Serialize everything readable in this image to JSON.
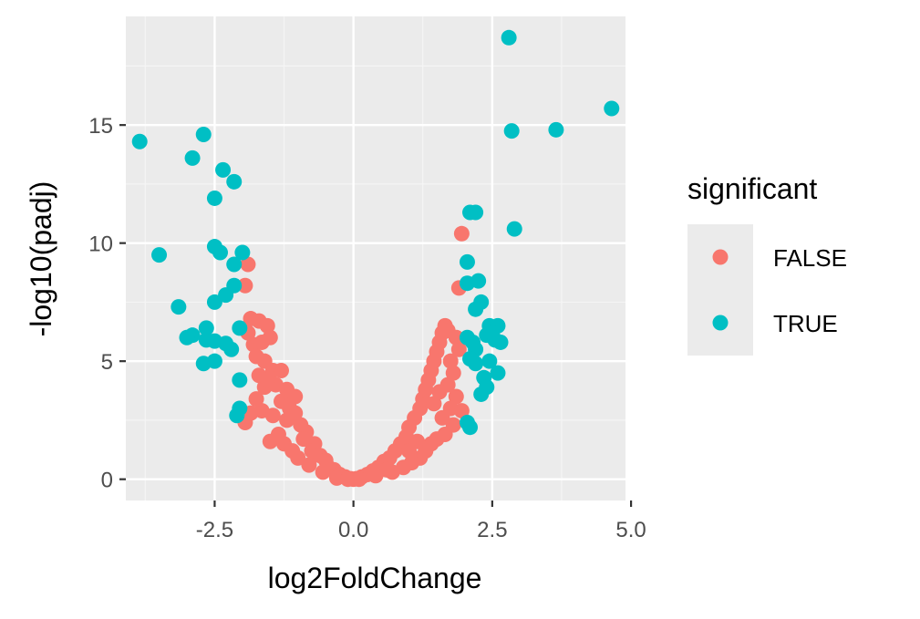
{
  "chart_data": {
    "type": "scatter",
    "xlabel": "log2FoldChange",
    "ylabel": "-log10(padj)",
    "xlim": [
      -4.1,
      4.9
    ],
    "ylim": [
      -0.9,
      19.6
    ],
    "xticks": [
      -2.5,
      0.0,
      2.5,
      5.0
    ],
    "xtick_labels": [
      "-2.5",
      "0.0",
      "2.5",
      "5.0"
    ],
    "yticks": [
      0,
      5,
      10,
      15
    ],
    "ytick_labels": [
      "0",
      "5",
      "10",
      "15"
    ],
    "grid": true,
    "legend": {
      "title": "significant",
      "position": "right"
    },
    "colors": {
      "panel": "#ebebeb",
      "grid_major": "#ffffff",
      "grid_minor": "#f5f5f5",
      "axis_tick": "#333333",
      "FALSE": "#f8766d",
      "TRUE": "#00bfc4"
    },
    "series": [
      {
        "name": "FALSE",
        "points": [
          [
            -1.9,
            9.1
          ],
          [
            -1.95,
            8.2
          ],
          [
            1.95,
            10.4
          ],
          [
            1.9,
            8.1
          ],
          [
            -1.85,
            6.8
          ],
          [
            -1.7,
            6.7
          ],
          [
            -1.55,
            6.5
          ],
          [
            -1.5,
            6.0
          ],
          [
            -1.8,
            5.7
          ],
          [
            -1.75,
            5.2
          ],
          [
            -1.6,
            5.0
          ],
          [
            -1.45,
            4.6
          ],
          [
            -1.7,
            4.4
          ],
          [
            -1.6,
            3.9
          ],
          [
            -1.4,
            4.0
          ],
          [
            -1.2,
            3.8
          ],
          [
            -1.3,
            3.3
          ],
          [
            -1.15,
            3.0
          ],
          [
            -1.05,
            2.8
          ],
          [
            -1.2,
            2.5
          ],
          [
            -0.95,
            2.3
          ],
          [
            -0.85,
            2.0
          ],
          [
            -0.9,
            1.7
          ],
          [
            -0.7,
            1.5
          ],
          [
            -0.75,
            1.2
          ],
          [
            -0.6,
            1.0
          ],
          [
            -0.5,
            0.8
          ],
          [
            -0.45,
            0.5
          ],
          [
            -0.35,
            0.4
          ],
          [
            -0.25,
            0.2
          ],
          [
            -0.15,
            0.1
          ],
          [
            -0.05,
            0.02
          ],
          [
            -1.95,
            2.4
          ],
          [
            -1.85,
            2.8
          ],
          [
            -1.65,
            2.9
          ],
          [
            -1.45,
            2.7
          ],
          [
            -1.5,
            1.6
          ],
          [
            -1.35,
            1.9
          ],
          [
            -1.25,
            1.5
          ],
          [
            -1.1,
            1.2
          ],
          [
            -1.0,
            0.9
          ],
          [
            -0.8,
            0.6
          ],
          [
            -1.05,
            3.5
          ],
          [
            -1.3,
            4.6
          ],
          [
            -1.75,
            3.4
          ],
          [
            -1.55,
            4.2
          ],
          [
            -1.9,
            6.2
          ],
          [
            -1.65,
            5.8
          ],
          [
            -0.55,
            0.3
          ],
          [
            -0.3,
            0.05
          ],
          [
            0.05,
            0.02
          ],
          [
            0.15,
            0.1
          ],
          [
            0.25,
            0.2
          ],
          [
            0.35,
            0.35
          ],
          [
            0.45,
            0.5
          ],
          [
            0.55,
            0.75
          ],
          [
            0.65,
            0.9
          ],
          [
            0.75,
            1.2
          ],
          [
            0.85,
            1.5
          ],
          [
            0.95,
            1.8
          ],
          [
            1.0,
            2.2
          ],
          [
            1.1,
            2.6
          ],
          [
            1.2,
            3.0
          ],
          [
            1.25,
            3.4
          ],
          [
            1.3,
            3.8
          ],
          [
            1.35,
            4.2
          ],
          [
            1.4,
            4.6
          ],
          [
            1.45,
            5.0
          ],
          [
            1.5,
            5.4
          ],
          [
            1.55,
            5.8
          ],
          [
            1.6,
            6.2
          ],
          [
            1.65,
            6.5
          ],
          [
            1.7,
            6.3
          ],
          [
            1.85,
            6.0
          ],
          [
            1.9,
            5.5
          ],
          [
            1.75,
            5.0
          ],
          [
            1.8,
            4.5
          ],
          [
            1.7,
            4.0
          ],
          [
            1.85,
            3.5
          ],
          [
            1.75,
            3.0
          ],
          [
            1.6,
            2.6
          ],
          [
            1.65,
            1.9
          ],
          [
            1.5,
            1.7
          ],
          [
            1.4,
            1.5
          ],
          [
            1.3,
            1.2
          ],
          [
            1.2,
            0.9
          ],
          [
            1.05,
            0.7
          ],
          [
            0.9,
            0.5
          ],
          [
            0.7,
            0.3
          ],
          [
            1.95,
            2.9
          ],
          [
            1.8,
            2.3
          ],
          [
            1.55,
            3.7
          ],
          [
            1.45,
            3.2
          ],
          [
            1.15,
            1.6
          ],
          [
            1.0,
            1.2
          ],
          [
            0.6,
            0.4
          ],
          [
            0.4,
            0.15
          ],
          [
            0.0,
            0.0
          ],
          [
            -0.1,
            0.0
          ],
          [
            0.1,
            0.0
          ]
        ]
      },
      {
        "name": "TRUE",
        "points": [
          [
            2.8,
            18.7
          ],
          [
            4.65,
            15.7
          ],
          [
            3.65,
            14.8
          ],
          [
            2.85,
            14.75
          ],
          [
            2.9,
            10.6
          ],
          [
            2.1,
            11.3
          ],
          [
            2.2,
            11.3
          ],
          [
            2.05,
            9.2
          ],
          [
            2.05,
            8.3
          ],
          [
            2.25,
            8.4
          ],
          [
            2.3,
            7.5
          ],
          [
            2.2,
            7.2
          ],
          [
            2.45,
            6.5
          ],
          [
            2.6,
            6.5
          ],
          [
            2.5,
            6.2
          ],
          [
            2.05,
            6.0
          ],
          [
            2.15,
            5.8
          ],
          [
            2.4,
            6.1
          ],
          [
            2.65,
            5.8
          ],
          [
            2.55,
            5.9
          ],
          [
            2.2,
            5.5
          ],
          [
            2.1,
            5.1
          ],
          [
            2.2,
            4.9
          ],
          [
            2.45,
            5.0
          ],
          [
            2.6,
            4.5
          ],
          [
            2.35,
            4.3
          ],
          [
            2.4,
            3.9
          ],
          [
            2.3,
            3.6
          ],
          [
            2.05,
            2.4
          ],
          [
            2.1,
            2.2
          ],
          [
            -3.85,
            14.3
          ],
          [
            -2.7,
            14.6
          ],
          [
            -2.35,
            13.1
          ],
          [
            -2.9,
            13.6
          ],
          [
            -2.15,
            12.6
          ],
          [
            -2.5,
            11.9
          ],
          [
            -2.5,
            9.85
          ],
          [
            -2.4,
            9.6
          ],
          [
            -3.5,
            9.5
          ],
          [
            -2.0,
            9.6
          ],
          [
            -2.15,
            9.1
          ],
          [
            -2.15,
            8.2
          ],
          [
            -2.3,
            7.8
          ],
          [
            -2.5,
            7.5
          ],
          [
            -3.15,
            7.3
          ],
          [
            -2.65,
            6.4
          ],
          [
            -2.05,
            6.4
          ],
          [
            -2.9,
            6.1
          ],
          [
            -3.0,
            6.0
          ],
          [
            -2.65,
            5.9
          ],
          [
            -2.5,
            5.85
          ],
          [
            -2.3,
            5.75
          ],
          [
            -2.2,
            5.5
          ],
          [
            -2.5,
            5.0
          ],
          [
            -2.7,
            4.9
          ],
          [
            -2.05,
            4.2
          ],
          [
            -2.05,
            3.0
          ],
          [
            -2.1,
            2.7
          ]
        ]
      }
    ]
  }
}
